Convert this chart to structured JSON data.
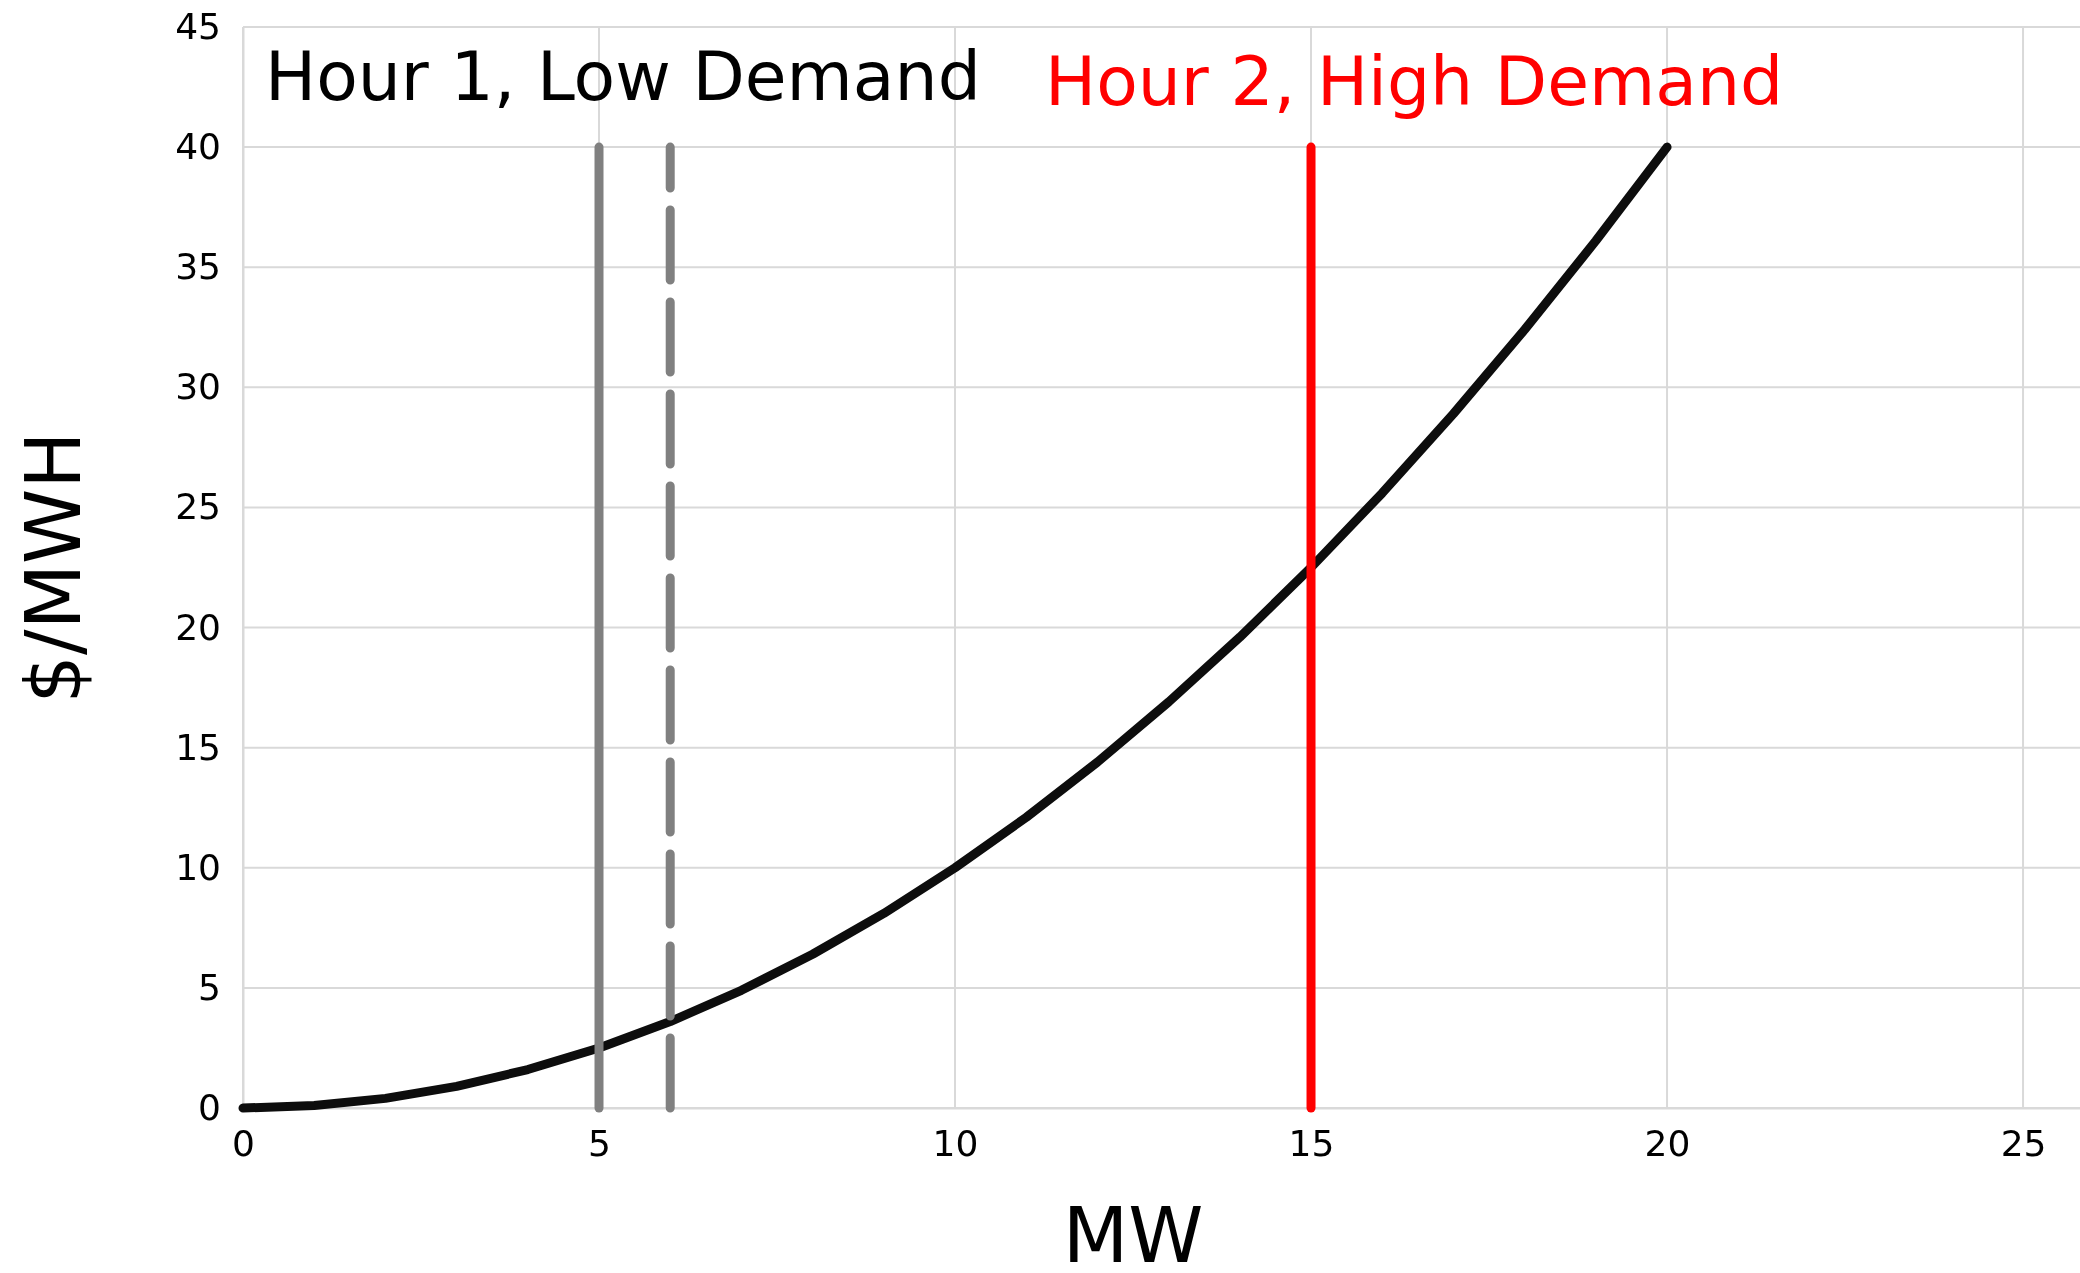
{
  "chart_data": {
    "type": "line",
    "xlabel": "MW",
    "ylabel": "$/MWH",
    "xlim": [
      0,
      25.8
    ],
    "ylim": [
      0,
      45
    ],
    "xticks": [
      0,
      5,
      10,
      15,
      20,
      25
    ],
    "yticks": [
      0,
      5,
      10,
      15,
      20,
      25,
      30,
      35,
      40,
      45
    ],
    "grid": true,
    "marker": "none",
    "annotations": [
      "Hour 1, Low Demand",
      "Hour 2, High Demand"
    ],
    "series": [
      {
        "color": "#0d0d0d",
        "x": [
          0,
          1,
          2,
          3,
          4,
          5,
          6,
          7,
          8,
          9,
          10,
          11,
          12,
          13,
          14,
          15,
          16,
          17,
          18,
          19,
          20
        ],
        "values": [
          0,
          0.1,
          0.4,
          0.9,
          1.6,
          2.5,
          3.6,
          4.9,
          6.4,
          8.1,
          10,
          12.1,
          14.4,
          16.9,
          19.6,
          22.5,
          25.6,
          28.9,
          32.4,
          36.1,
          40
        ],
        "line_style": "solid"
      },
      {
        "color": "#808080",
        "x": [
          5,
          5
        ],
        "values": [
          0,
          40
        ],
        "line_style": "solid"
      },
      {
        "color": "#808080",
        "x": [
          6,
          6
        ],
        "values": [
          0,
          40
        ],
        "line_style": "dashed"
      },
      {
        "color": "#ff0000",
        "x": [
          15,
          15
        ],
        "values": [
          0,
          40
        ],
        "line_style": "solid"
      }
    ]
  }
}
